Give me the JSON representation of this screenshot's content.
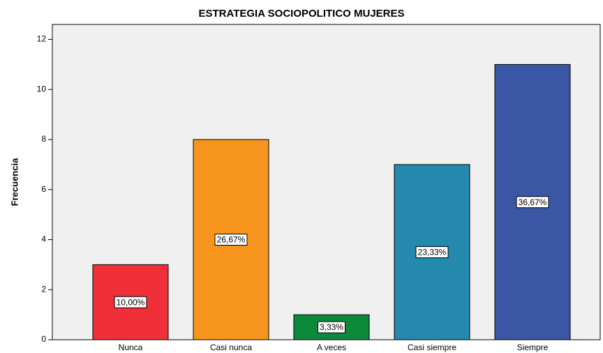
{
  "chart_data": {
    "type": "bar",
    "title": "ESTRATEGIA SOCIOPOLITICO MUJERES",
    "y_label": "Frecuencia",
    "categories": [
      "Nunca",
      "Casi nunca",
      "A veces",
      "Casi siempre",
      "Siempre"
    ],
    "values": [
      3,
      8,
      1,
      7,
      11
    ],
    "bar_labels": [
      "10,00%",
      "26,67%",
      "3,33%",
      "23,33%",
      "36,67%"
    ],
    "colors": [
      "#ef3038",
      "#f7941d",
      "#0c8a3c",
      "#2489ac",
      "#3c56a6"
    ],
    "ylim": [
      0,
      12.6
    ],
    "yticks": [
      0,
      2,
      4,
      6,
      8,
      10,
      12
    ],
    "grid": false
  }
}
